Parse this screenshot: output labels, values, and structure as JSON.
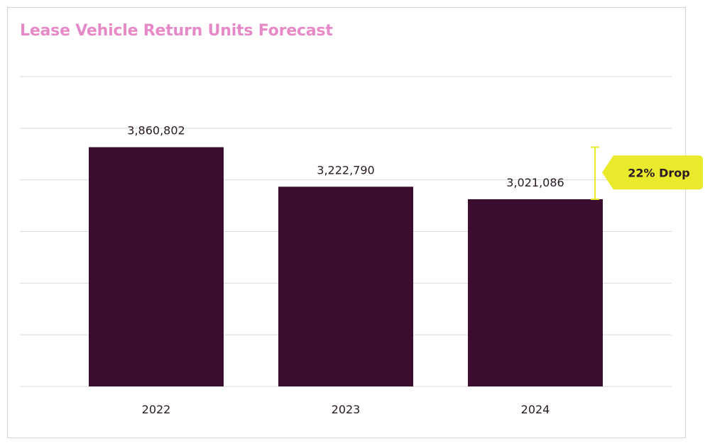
{
  "chart_data": {
    "type": "bar",
    "title": "Lease Vehicle Return Units Forecast",
    "xlabel": "",
    "ylabel": "",
    "categories": [
      "2022",
      "2023",
      "2024"
    ],
    "values": [
      3860802,
      3222790,
      3021086
    ],
    "data_labels": [
      "3,860,802",
      "3,222,790",
      "3,021,086"
    ],
    "ylim": [
      0,
      5000000
    ],
    "grid": true,
    "legend": "none",
    "annotation": {
      "text": "22% Drop",
      "from_category": "2022",
      "to_category": "2024"
    },
    "colors": {
      "bar": "#3a0d2f",
      "title": "#e58ac7",
      "callout": "#e8ea2b",
      "grid": "#d9d9d9"
    }
  }
}
